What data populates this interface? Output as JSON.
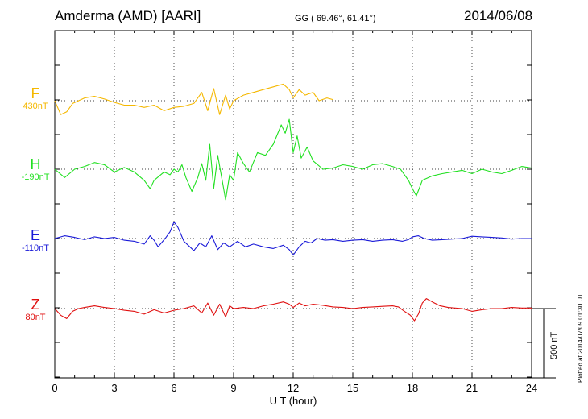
{
  "header": {
    "station": "Amderma (AMD)  [AARI]",
    "coords": "GG ( 69.46°,  61.41°)",
    "date": "2014/06/08",
    "plotted": "Plotted at 2014/07/09 01:30 UT"
  },
  "chart_data": {
    "type": "line",
    "xlabel": "U T (hour)",
    "xlim": [
      0,
      24
    ],
    "x_ticks": [
      "0",
      "3",
      "6",
      "9",
      "12",
      "15",
      "18",
      "21",
      "24"
    ],
    "scale_bar": "500 nT",
    "series": [
      {
        "name": "F",
        "baseline_label": "430nT",
        "color": "#f5b800",
        "points": [
          [
            0,
            0
          ],
          [
            0.3,
            -25
          ],
          [
            0.6,
            -20
          ],
          [
            0.9,
            -5
          ],
          [
            1.5,
            5
          ],
          [
            2.0,
            8
          ],
          [
            2.5,
            3
          ],
          [
            3.0,
            -3
          ],
          [
            3.5,
            -8
          ],
          [
            4.0,
            -8
          ],
          [
            4.5,
            -12
          ],
          [
            5.0,
            -8
          ],
          [
            5.5,
            -18
          ],
          [
            6.0,
            -12
          ],
          [
            6.5,
            -10
          ],
          [
            7.0,
            -5
          ],
          [
            7.4,
            15
          ],
          [
            7.7,
            -18
          ],
          [
            8.0,
            22
          ],
          [
            8.3,
            -25
          ],
          [
            8.6,
            10
          ],
          [
            8.8,
            -15
          ],
          [
            9.0,
            0
          ],
          [
            9.5,
            10
          ],
          [
            10.0,
            15
          ],
          [
            10.5,
            20
          ],
          [
            11.0,
            25
          ],
          [
            11.5,
            30
          ],
          [
            11.8,
            20
          ],
          [
            12.0,
            5
          ],
          [
            12.3,
            20
          ],
          [
            12.6,
            10
          ],
          [
            13.0,
            15
          ],
          [
            13.3,
            0
          ],
          [
            13.7,
            5
          ],
          [
            14.0,
            2
          ]
        ]
      },
      {
        "name": "H",
        "baseline_label": "-190nT",
        "color": "#22e022",
        "points": [
          [
            0,
            0
          ],
          [
            0.5,
            -15
          ],
          [
            1.0,
            0
          ],
          [
            1.5,
            5
          ],
          [
            2.0,
            12
          ],
          [
            2.5,
            8
          ],
          [
            3.0,
            -5
          ],
          [
            3.5,
            3
          ],
          [
            4.0,
            -5
          ],
          [
            4.5,
            -20
          ],
          [
            4.8,
            -35
          ],
          [
            5.0,
            -20
          ],
          [
            5.5,
            -5
          ],
          [
            5.8,
            -10
          ],
          [
            6.0,
            0
          ],
          [
            6.2,
            -5
          ],
          [
            6.4,
            8
          ],
          [
            6.6,
            -15
          ],
          [
            6.9,
            -40
          ],
          [
            7.2,
            -15
          ],
          [
            7.4,
            10
          ],
          [
            7.6,
            -20
          ],
          [
            7.8,
            45
          ],
          [
            8.0,
            -35
          ],
          [
            8.2,
            25
          ],
          [
            8.4,
            -15
          ],
          [
            8.6,
            -55
          ],
          [
            8.8,
            -10
          ],
          [
            9.0,
            -20
          ],
          [
            9.2,
            30
          ],
          [
            9.5,
            10
          ],
          [
            9.8,
            -5
          ],
          [
            10.2,
            30
          ],
          [
            10.6,
            25
          ],
          [
            11.0,
            45
          ],
          [
            11.4,
            80
          ],
          [
            11.6,
            65
          ],
          [
            11.8,
            90
          ],
          [
            12.0,
            30
          ],
          [
            12.2,
            60
          ],
          [
            12.4,
            20
          ],
          [
            12.7,
            40
          ],
          [
            13.0,
            15
          ],
          [
            13.5,
            0
          ],
          [
            14.0,
            2
          ],
          [
            14.5,
            8
          ],
          [
            15.0,
            5
          ],
          [
            15.5,
            0
          ],
          [
            16.0,
            8
          ],
          [
            16.5,
            10
          ],
          [
            17.0,
            5
          ],
          [
            17.4,
            0
          ],
          [
            17.8,
            -20
          ],
          [
            18.0,
            -35
          ],
          [
            18.2,
            -48
          ],
          [
            18.5,
            -20
          ],
          [
            19.0,
            -12
          ],
          [
            19.5,
            -8
          ],
          [
            20.0,
            -5
          ],
          [
            20.5,
            -2
          ],
          [
            21.0,
            -8
          ],
          [
            21.5,
            0
          ],
          [
            22.0,
            -5
          ],
          [
            22.5,
            -8
          ],
          [
            23.0,
            -2
          ],
          [
            23.5,
            5
          ],
          [
            24.0,
            2
          ]
        ]
      },
      {
        "name": "E",
        "baseline_label": "-110nT",
        "color": "#1a1ad8",
        "points": [
          [
            0,
            0
          ],
          [
            0.5,
            5
          ],
          [
            1.0,
            2
          ],
          [
            1.5,
            -2
          ],
          [
            2.0,
            3
          ],
          [
            2.5,
            0
          ],
          [
            3.0,
            2
          ],
          [
            3.5,
            -3
          ],
          [
            4.0,
            -5
          ],
          [
            4.5,
            -10
          ],
          [
            4.8,
            5
          ],
          [
            5.0,
            -3
          ],
          [
            5.2,
            -15
          ],
          [
            5.6,
            2
          ],
          [
            5.8,
            12
          ],
          [
            6.0,
            30
          ],
          [
            6.2,
            20
          ],
          [
            6.5,
            -5
          ],
          [
            6.8,
            -15
          ],
          [
            7.0,
            -22
          ],
          [
            7.3,
            -8
          ],
          [
            7.6,
            -15
          ],
          [
            7.9,
            5
          ],
          [
            8.2,
            -20
          ],
          [
            8.5,
            -8
          ],
          [
            8.8,
            -15
          ],
          [
            9.2,
            -5
          ],
          [
            9.6,
            -15
          ],
          [
            10.0,
            -10
          ],
          [
            10.5,
            -15
          ],
          [
            11.0,
            -18
          ],
          [
            11.5,
            -12
          ],
          [
            11.8,
            -20
          ],
          [
            12.0,
            -30
          ],
          [
            12.3,
            -15
          ],
          [
            12.6,
            -5
          ],
          [
            12.9,
            -8
          ],
          [
            13.2,
            0
          ],
          [
            13.6,
            -3
          ],
          [
            14.0,
            -2
          ],
          [
            14.5,
            -5
          ],
          [
            15.0,
            -3
          ],
          [
            15.5,
            -2
          ],
          [
            16.0,
            -5
          ],
          [
            16.5,
            -3
          ],
          [
            17.0,
            -2
          ],
          [
            17.5,
            -5
          ],
          [
            17.8,
            -2
          ],
          [
            18.0,
            3
          ],
          [
            18.3,
            5
          ],
          [
            18.6,
            0
          ],
          [
            19.0,
            -3
          ],
          [
            19.5,
            -2
          ],
          [
            20.0,
            -1
          ],
          [
            20.5,
            0
          ],
          [
            21.0,
            4
          ],
          [
            21.5,
            3
          ],
          [
            22.0,
            2
          ],
          [
            22.5,
            1
          ],
          [
            23.0,
            -1
          ],
          [
            23.5,
            0
          ],
          [
            24.0,
            0
          ]
        ]
      },
      {
        "name": "Z",
        "baseline_label": "80nT",
        "color": "#e01010",
        "points": [
          [
            0,
            0
          ],
          [
            0.3,
            -12
          ],
          [
            0.6,
            -18
          ],
          [
            0.9,
            -5
          ],
          [
            1.2,
            0
          ],
          [
            1.5,
            2
          ],
          [
            2.0,
            5
          ],
          [
            2.5,
            2
          ],
          [
            3.0,
            0
          ],
          [
            3.5,
            -3
          ],
          [
            4.0,
            -5
          ],
          [
            4.5,
            -10
          ],
          [
            5.0,
            -2
          ],
          [
            5.5,
            -8
          ],
          [
            6.0,
            -3
          ],
          [
            6.5,
            0
          ],
          [
            7.0,
            5
          ],
          [
            7.4,
            -8
          ],
          [
            7.7,
            10
          ],
          [
            8.0,
            -12
          ],
          [
            8.3,
            8
          ],
          [
            8.6,
            -15
          ],
          [
            8.8,
            5
          ],
          [
            9.0,
            0
          ],
          [
            9.5,
            2
          ],
          [
            10.0,
            0
          ],
          [
            10.5,
            5
          ],
          [
            11.0,
            8
          ],
          [
            11.5,
            12
          ],
          [
            11.8,
            8
          ],
          [
            12.0,
            2
          ],
          [
            12.3,
            10
          ],
          [
            12.6,
            5
          ],
          [
            13.0,
            8
          ],
          [
            13.5,
            6
          ],
          [
            14.0,
            3
          ],
          [
            14.5,
            2
          ],
          [
            15.0,
            0
          ],
          [
            15.5,
            2
          ],
          [
            16.0,
            3
          ],
          [
            16.5,
            4
          ],
          [
            17.0,
            5
          ],
          [
            17.3,
            3
          ],
          [
            17.6,
            -5
          ],
          [
            17.9,
            -12
          ],
          [
            18.1,
            -22
          ],
          [
            18.3,
            -10
          ],
          [
            18.5,
            10
          ],
          [
            18.7,
            18
          ],
          [
            19.0,
            12
          ],
          [
            19.4,
            5
          ],
          [
            19.8,
            2
          ],
          [
            20.5,
            0
          ],
          [
            21.0,
            -5
          ],
          [
            21.5,
            -2
          ],
          [
            22.0,
            0
          ],
          [
            22.5,
            0
          ],
          [
            23.0,
            2
          ],
          [
            23.5,
            1
          ],
          [
            24.0,
            1
          ]
        ]
      }
    ]
  }
}
